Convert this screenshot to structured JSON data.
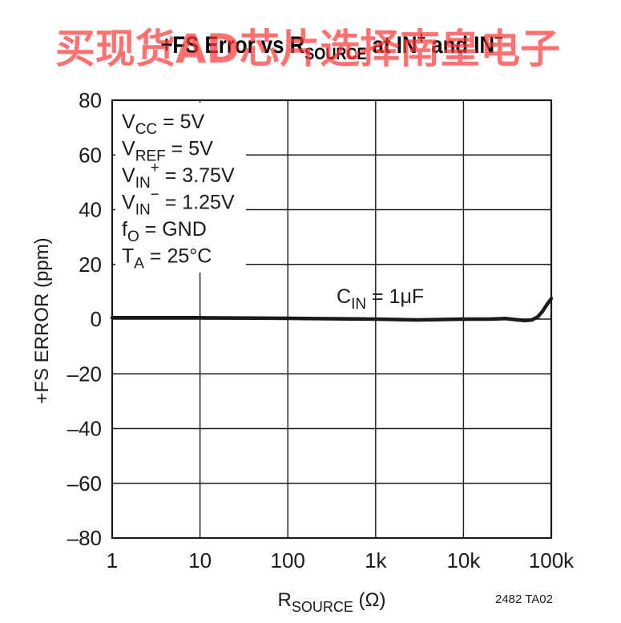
{
  "watermark": "买现货AD芯片选择南皇电子",
  "figure_id": "2482 TA02",
  "conditions": [
    {
      "main": "V",
      "sub": "CC",
      "sup": "",
      "rest": " = 5V"
    },
    {
      "main": "V",
      "sub": "REF",
      "sup": "",
      "rest": " = 5V"
    },
    {
      "main": "V",
      "sub": "IN",
      "sup": "+",
      "rest": " = 3.75V"
    },
    {
      "main": "V",
      "sub": "IN",
      "sup": "−",
      "rest": " = 1.25V"
    },
    {
      "main": "f",
      "sub": "O",
      "sup": "",
      "rest": " = GND"
    },
    {
      "main": "T",
      "sub": "A",
      "sup": "",
      "rest": " = 25°C"
    }
  ],
  "colors": {
    "line": "#1a1a1a",
    "grid": "#1a1a1a",
    "watermark": "#ff3b3b"
  },
  "chart_data": {
    "type": "line",
    "title": {
      "pre": "+FS Error vs R",
      "sub": "SOURCE",
      "mid": " at IN",
      "sup1": "+",
      "post": " and IN",
      "sup2": "−"
    },
    "xlabel": {
      "main": "R",
      "sub": "SOURCE",
      "post": " (Ω)"
    },
    "ylabel": "+FS ERROR (ppm)",
    "x_scale": "log",
    "xlim": [
      1,
      100000
    ],
    "ylim": [
      -80,
      80
    ],
    "x_ticks": [
      1,
      10,
      100,
      1000,
      10000,
      100000
    ],
    "x_tick_labels": [
      "1",
      "10",
      "100",
      "1k",
      "10k",
      "100k"
    ],
    "y_ticks": [
      80,
      60,
      40,
      20,
      0,
      -20,
      -40,
      -60,
      -80
    ],
    "y_tick_labels": [
      "80",
      "60",
      "40",
      "20",
      "0",
      "–20",
      "–40",
      "–60",
      "–80"
    ],
    "grid": true,
    "series": [
      {
        "name": {
          "main": "C",
          "sub": "IN",
          "rest": " = 1μF"
        },
        "x": [
          1,
          10,
          100,
          1000,
          3000,
          10000,
          20000,
          30000,
          40000,
          50000,
          60000,
          70000,
          80000,
          90000,
          100000
        ],
        "y": [
          0.5,
          0.5,
          0.3,
          0,
          -0.3,
          0,
          0,
          0.2,
          -0.2,
          -0.5,
          -0.3,
          0.8,
          3,
          5.5,
          7.5
        ]
      }
    ]
  }
}
